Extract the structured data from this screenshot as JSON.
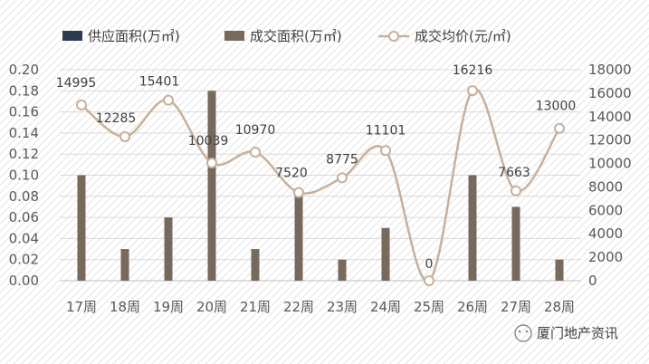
{
  "chart_data": {
    "type": "bar",
    "categories": [
      "17周",
      "18周",
      "19周",
      "20周",
      "21周",
      "22周",
      "23周",
      "24周",
      "25周",
      "26周",
      "27周",
      "28周"
    ],
    "series": [
      {
        "name": "供应面积(万㎡)",
        "axis": "left",
        "type": "bar",
        "color": "#2e3a4f",
        "values": [
          0,
          0,
          0,
          0,
          0,
          0,
          0,
          0,
          0,
          0,
          0,
          0
        ]
      },
      {
        "name": "成交面积(万㎡)",
        "axis": "left",
        "type": "bar",
        "color": "#776a5d",
        "values": [
          0.1,
          0.03,
          0.06,
          0.18,
          0.03,
          0.08,
          0.02,
          0.05,
          0,
          0.1,
          0.07,
          0.02
        ]
      },
      {
        "name": "成交均价(元/㎡)",
        "axis": "right",
        "type": "line",
        "color": "#c7b09c",
        "values": [
          14995,
          12285,
          15401,
          10039,
          10970,
          7520,
          8775,
          11101,
          0,
          16216,
          7663,
          13000
        ]
      }
    ],
    "ylim_left": [
      0,
      0.2
    ],
    "ylim_right": [
      0,
      18000
    ],
    "yticks_left": [
      "0.00",
      "0.02",
      "0.04",
      "0.06",
      "0.08",
      "0.10",
      "0.12",
      "0.14",
      "0.16",
      "0.18",
      "0.20"
    ],
    "yticks_right": [
      "0",
      "2000",
      "4000",
      "6000",
      "8000",
      "10000",
      "12000",
      "14000",
      "16000",
      "18000"
    ],
    "data_labels": [
      "14995",
      "12285",
      "15401",
      "10039",
      "10970",
      "7520",
      "8775",
      "11101",
      "0",
      "16216",
      "7663",
      "13000"
    ],
    "legend_position": "top",
    "grid": true
  },
  "watermark": {
    "logo_text": "厦门地产资讯",
    "logo_icon": "wechat-icon"
  }
}
